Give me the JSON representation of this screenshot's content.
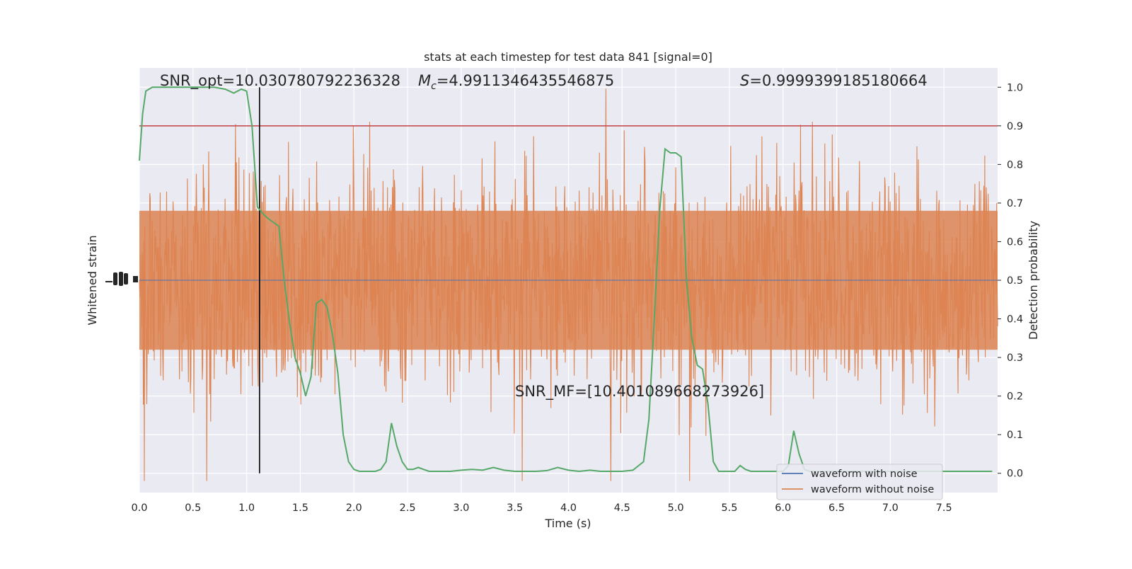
{
  "chart_data": {
    "type": "line",
    "title": "stats at each timestep for test data 841 [signal=0]",
    "xlabel": "Time (s)",
    "ylabel_left": "Whitened strain",
    "ylabel_right": "Detection probability",
    "xlim": [
      0.0,
      8.0
    ],
    "ylim_right": [
      -0.05,
      1.05
    ],
    "x_ticks": [
      "0.0",
      "0.5",
      "1.0",
      "1.5",
      "2.0",
      "2.5",
      "3.0",
      "3.5",
      "4.0",
      "4.5",
      "5.0",
      "5.5",
      "6.0",
      "6.5",
      "7.0",
      "7.5"
    ],
    "x_tick_values": [
      0.0,
      0.5,
      1.0,
      1.5,
      2.0,
      2.5,
      3.0,
      3.5,
      4.0,
      4.5,
      5.0,
      5.5,
      6.0,
      6.5,
      7.0,
      7.5
    ],
    "y_right_ticks": [
      "0.0",
      "0.1",
      "0.2",
      "0.3",
      "0.4",
      "0.5",
      "0.6",
      "0.7",
      "0.8",
      "0.9",
      "1.0"
    ],
    "y_right_tick_values": [
      0.0,
      0.1,
      0.2,
      0.3,
      0.4,
      0.5,
      0.6,
      0.7,
      0.8,
      0.9,
      1.0
    ],
    "grid": true,
    "legend_position": "lower-right",
    "series": [
      {
        "name": "waveform with noise",
        "color": "#4c72b0"
      },
      {
        "name": "waveform without noise",
        "color": "#dd8452"
      }
    ],
    "detection_probability": {
      "color": "#55a868",
      "x": [
        0.0,
        0.03,
        0.06,
        0.12,
        0.2,
        0.3,
        0.4,
        0.5,
        0.6,
        0.7,
        0.8,
        0.88,
        0.95,
        1.0,
        1.05,
        1.1,
        1.16,
        1.2,
        1.25,
        1.3,
        1.35,
        1.4,
        1.45,
        1.5,
        1.55,
        1.6,
        1.65,
        1.7,
        1.75,
        1.8,
        1.85,
        1.9,
        1.95,
        2.0,
        2.05,
        2.1,
        2.15,
        2.2,
        2.25,
        2.3,
        2.35,
        2.4,
        2.45,
        2.5,
        2.55,
        2.6,
        2.65,
        2.7,
        2.75,
        2.8,
        2.9,
        3.0,
        3.1,
        3.2,
        3.3,
        3.4,
        3.5,
        3.6,
        3.7,
        3.8,
        3.9,
        4.0,
        4.1,
        4.2,
        4.3,
        4.4,
        4.5,
        4.6,
        4.7,
        4.75,
        4.8,
        4.85,
        4.9,
        4.95,
        5.0,
        5.05,
        5.1,
        5.15,
        5.2,
        5.25,
        5.3,
        5.35,
        5.4,
        5.45,
        5.5,
        5.55,
        5.6,
        5.65,
        5.7,
        5.75,
        5.8,
        5.9,
        6.0,
        6.05,
        6.1,
        6.15,
        6.2,
        6.25,
        6.3,
        6.35,
        6.4,
        6.5,
        6.6,
        6.7,
        6.8,
        6.9,
        7.0,
        7.1,
        7.2,
        7.3,
        7.4,
        7.5,
        7.6,
        7.7,
        7.8,
        7.9,
        7.95
      ],
      "y": [
        0.81,
        0.93,
        0.99,
        1.0,
        1.0,
        1.0,
        1.0,
        1.0,
        1.0,
        1.0,
        0.995,
        0.985,
        0.995,
        0.99,
        0.9,
        0.69,
        0.67,
        0.66,
        0.65,
        0.64,
        0.5,
        0.39,
        0.3,
        0.26,
        0.2,
        0.25,
        0.44,
        0.45,
        0.43,
        0.36,
        0.26,
        0.1,
        0.03,
        0.01,
        0.005,
        0.005,
        0.005,
        0.005,
        0.01,
        0.03,
        0.13,
        0.07,
        0.03,
        0.01,
        0.01,
        0.015,
        0.01,
        0.005,
        0.005,
        0.005,
        0.005,
        0.008,
        0.01,
        0.008,
        0.015,
        0.008,
        0.005,
        0.005,
        0.005,
        0.007,
        0.015,
        0.008,
        0.005,
        0.008,
        0.005,
        0.005,
        0.005,
        0.008,
        0.03,
        0.14,
        0.4,
        0.68,
        0.84,
        0.83,
        0.83,
        0.82,
        0.5,
        0.35,
        0.28,
        0.27,
        0.18,
        0.03,
        0.005,
        0.005,
        0.005,
        0.005,
        0.02,
        0.01,
        0.005,
        0.005,
        0.005,
        0.005,
        0.005,
        0.02,
        0.11,
        0.05,
        0.01,
        0.005,
        0.005,
        0.005,
        0.005,
        0.005,
        0.005,
        0.005,
        0.005,
        0.005,
        0.005,
        0.005,
        0.005,
        0.005,
        0.005,
        0.005,
        0.005,
        0.005,
        0.005,
        0.005,
        0.005
      ]
    },
    "threshold": {
      "value": 0.9,
      "color": "#c44e52"
    },
    "marker_time": 1.12,
    "annotations": {
      "snr_opt": "SNR_opt=10.030780792236328",
      "mc_label": "M",
      "mc_sub": "c",
      "mc_value": "=4.9911346435546875",
      "s_label": "S",
      "s_value": "=0.9999399185180664",
      "snr_mf": "SNR_MF=[10.401089668273926]"
    }
  }
}
